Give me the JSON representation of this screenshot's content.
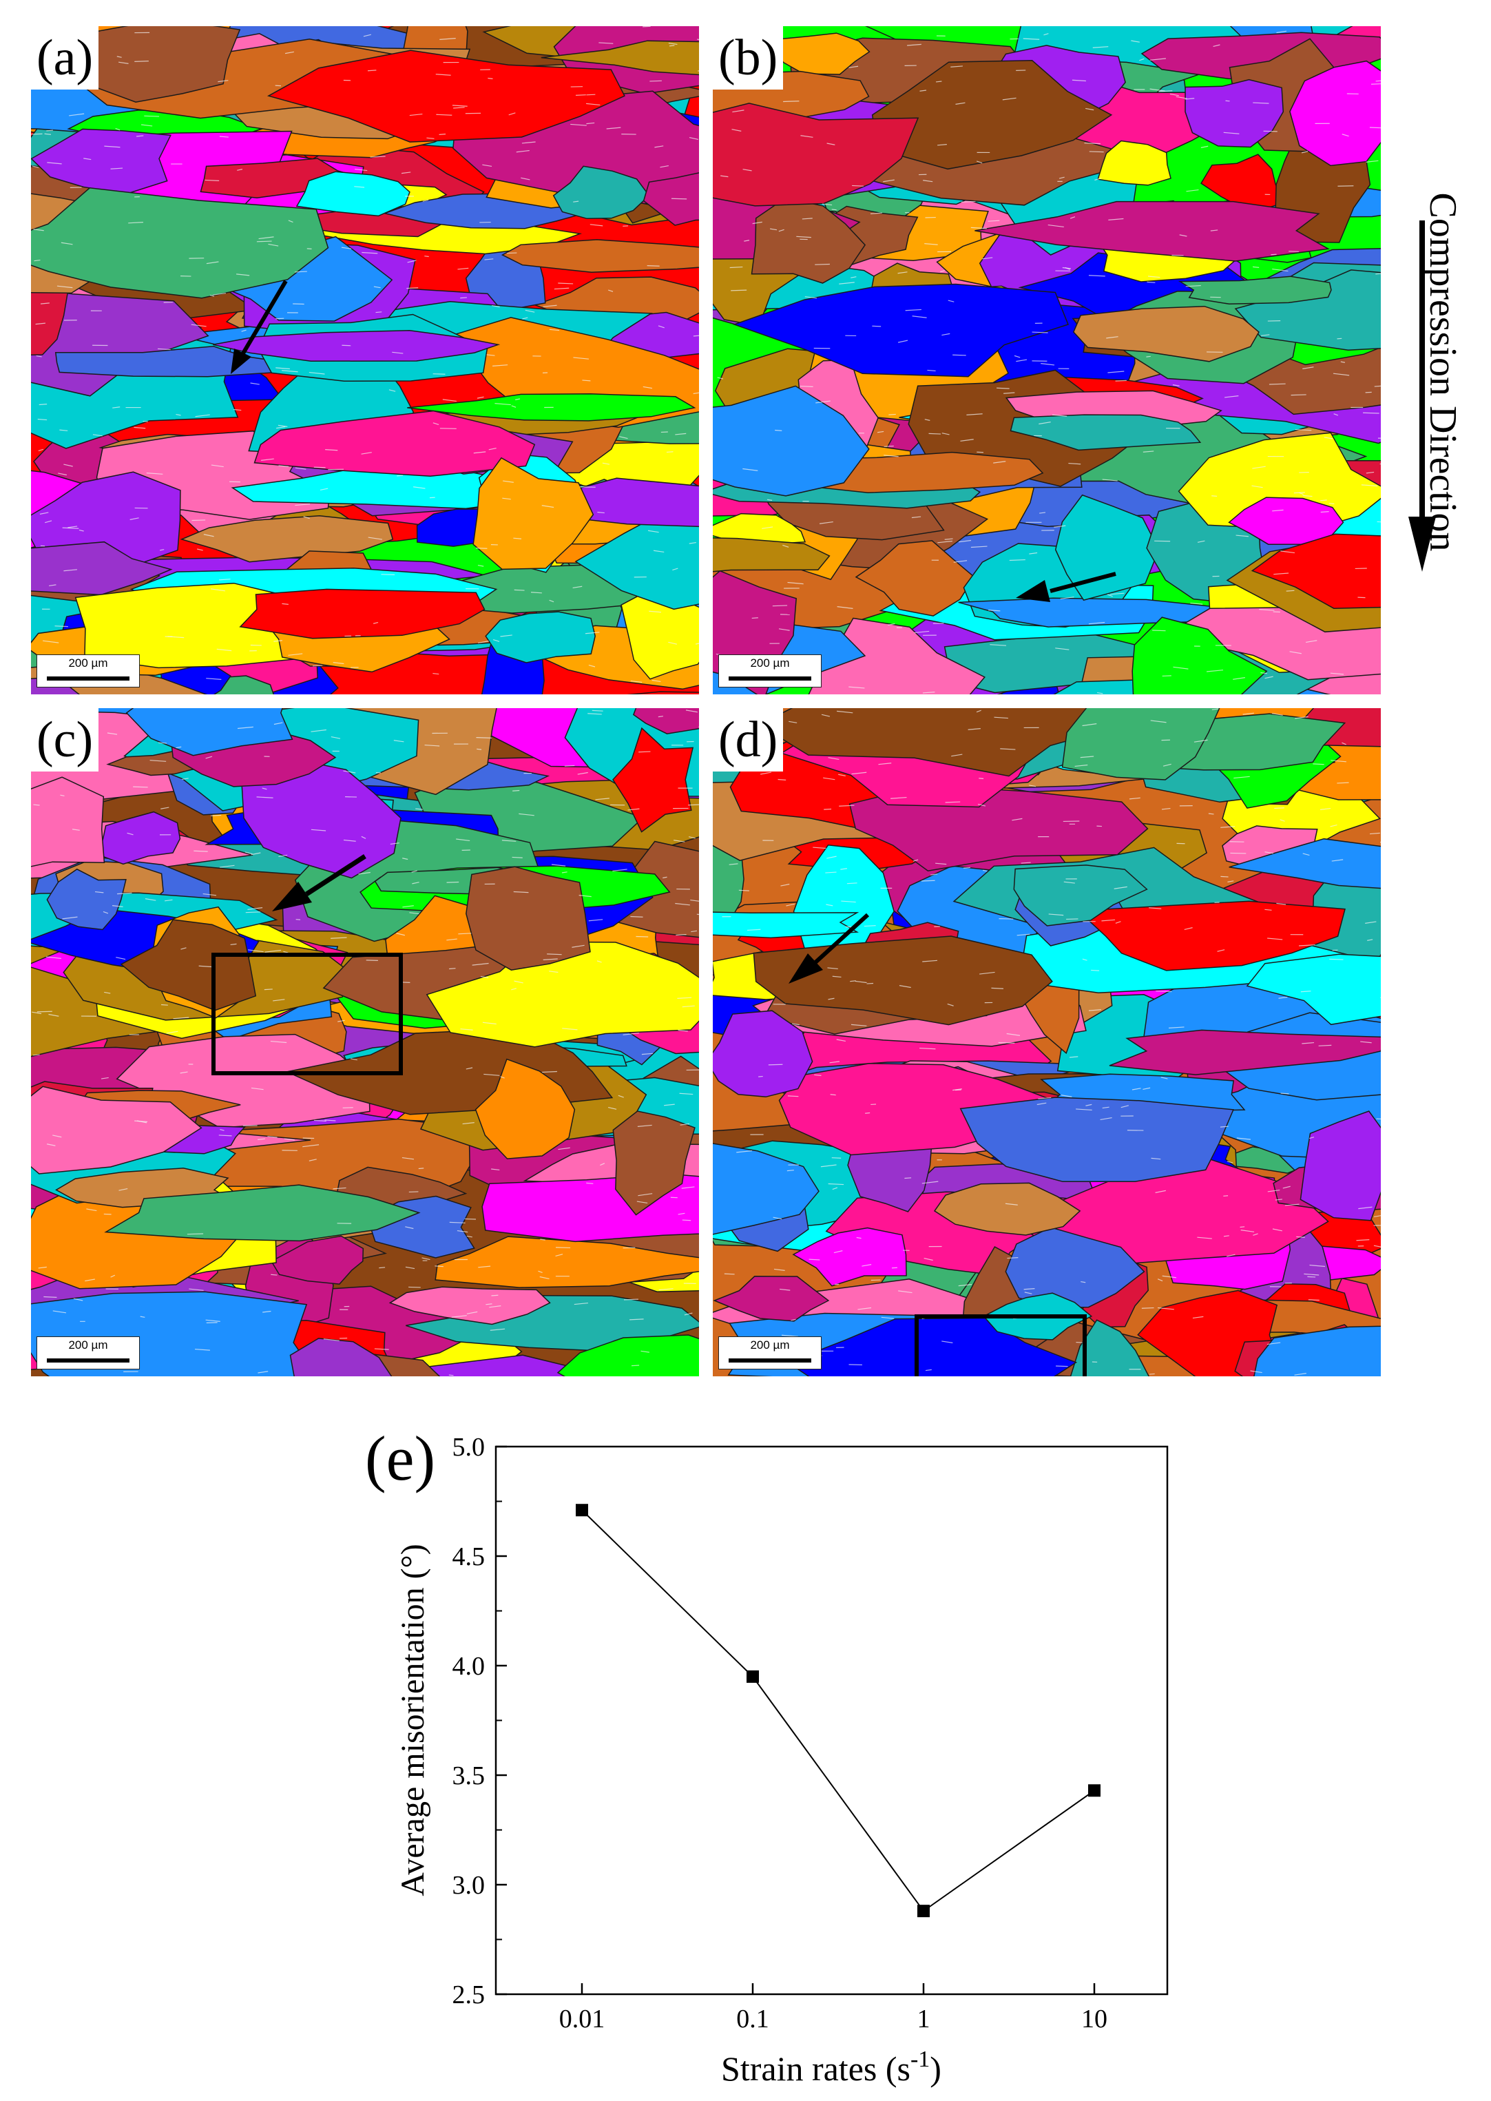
{
  "panels": [
    {
      "id": "a",
      "label": "(a)",
      "scale_label": "200 µm"
    },
    {
      "id": "b",
      "label": "(b)",
      "scale_label": "200 µm"
    },
    {
      "id": "c",
      "label": "(c)",
      "scale_label": "200 µm"
    },
    {
      "id": "d",
      "label": "(d)",
      "scale_label": "200 µm"
    }
  ],
  "compression_direction": "Compression Direction",
  "grain_palette": [
    "#ff0000",
    "#ff1493",
    "#0000ff",
    "#00ffff",
    "#ffff00",
    "#00ff00",
    "#ff00ff",
    "#a020f0",
    "#cd853f",
    "#ff8c00",
    "#8b4513",
    "#3cb371",
    "#1e90ff",
    "#dc143c",
    "#ff69b4",
    "#d2691e",
    "#9932cc",
    "#20b2aa",
    "#b8860b",
    "#c71585",
    "#4169e1",
    "#ffa500",
    "#a0522d",
    "#00ced1"
  ],
  "chart_data": {
    "type": "line",
    "panel_label": "(e)",
    "categories": [
      "0.01",
      "0.1",
      "1",
      "10"
    ],
    "series": [
      {
        "values": [
          4.71,
          3.95,
          2.88,
          3.43
        ]
      }
    ],
    "xlabel": "Strain rates (s",
    "xlabel_sup": "-1",
    "xlabel_end": ")",
    "ylabel": "Average misorientation (°)",
    "ylim": [
      2.5,
      5.0
    ],
    "yticks": [
      "2.5",
      "3.0",
      "3.5",
      "4.0",
      "4.5",
      "5.0"
    ],
    "x_scale": "log",
    "marker": "square",
    "line_color": "#000000",
    "grid": false
  }
}
